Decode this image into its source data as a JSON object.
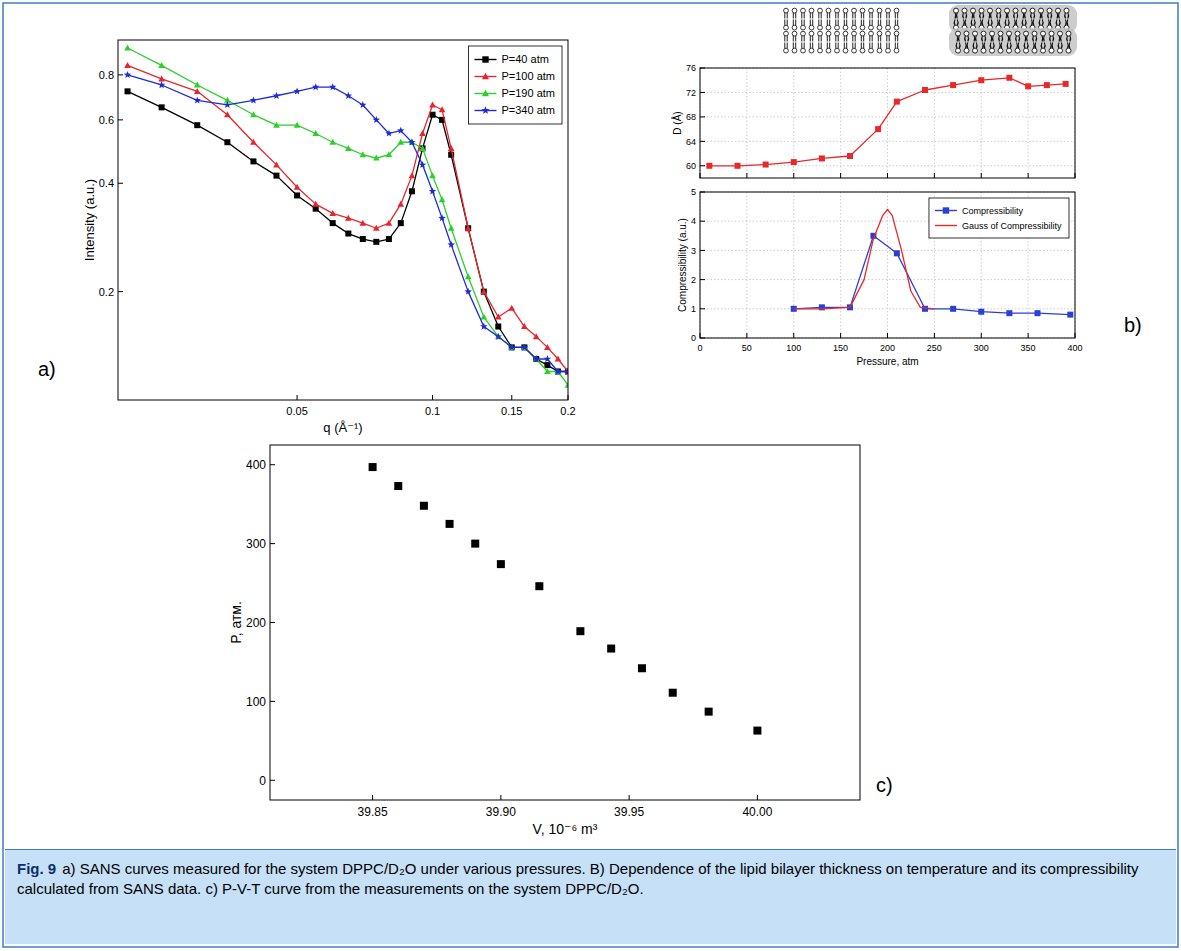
{
  "chart_data": [
    {
      "type": "line",
      "x_label": "q (Å⁻¹)",
      "y_label": "Intensity (a.u.)",
      "log": true,
      "xlim": [
        0.02,
        0.2
      ],
      "ylim": [
        0.1,
        1
      ],
      "xticks": [
        0.05,
        0.1,
        0.15,
        0.2
      ],
      "yticks": [
        0.2,
        0.4,
        0.6,
        0.8
      ],
      "legend": "upper right",
      "x": [
        0.021,
        0.025,
        0.03,
        0.035,
        0.04,
        0.045,
        0.05,
        0.055,
        0.06,
        0.065,
        0.07,
        0.075,
        0.08,
        0.085,
        0.09,
        0.095,
        0.1,
        0.105,
        0.11,
        0.12,
        0.13,
        0.14,
        0.15,
        0.16,
        0.17,
        0.18,
        0.19,
        0.2
      ],
      "series": [
        {
          "name": "P=40 atm",
          "color": "#000000",
          "marker": "square",
          "values": [
            0.72,
            0.65,
            0.58,
            0.52,
            0.46,
            0.42,
            0.37,
            0.34,
            0.31,
            0.29,
            0.28,
            0.275,
            0.28,
            0.31,
            0.38,
            0.5,
            0.62,
            0.6,
            0.48,
            0.3,
            0.2,
            0.16,
            0.14,
            0.14,
            0.13,
            0.125,
            0.12,
            0.12
          ]
        },
        {
          "name": "P=100 atm",
          "color": "#e8252b",
          "marker": "triangle",
          "values": [
            0.85,
            0.78,
            0.72,
            0.62,
            0.52,
            0.45,
            0.39,
            0.35,
            0.33,
            0.32,
            0.31,
            0.3,
            0.31,
            0.35,
            0.42,
            0.55,
            0.66,
            0.64,
            0.5,
            0.3,
            0.2,
            0.17,
            0.18,
            0.16,
            0.15,
            0.14,
            0.13,
            0.12
          ]
        },
        {
          "name": "P=190 atm",
          "color": "#2bd12b",
          "marker": "triangle",
          "values": [
            0.95,
            0.85,
            0.75,
            0.68,
            0.62,
            0.58,
            0.58,
            0.55,
            0.52,
            0.5,
            0.48,
            0.47,
            0.48,
            0.52,
            0.52,
            0.5,
            0.42,
            0.36,
            0.3,
            0.22,
            0.17,
            0.15,
            0.14,
            0.14,
            0.13,
            0.12,
            0.12,
            0.11
          ]
        },
        {
          "name": "P=340 atm",
          "color": "#1f2bd6",
          "marker": "star",
          "values": [
            0.8,
            0.75,
            0.68,
            0.66,
            0.68,
            0.7,
            0.72,
            0.74,
            0.74,
            0.7,
            0.66,
            0.6,
            0.55,
            0.56,
            0.52,
            0.45,
            0.38,
            0.32,
            0.27,
            0.2,
            0.16,
            0.15,
            0.14,
            0.14,
            0.13,
            0.13,
            0.12,
            0.12
          ]
        }
      ]
    },
    {
      "type": "line",
      "y_label": "D (Å)",
      "xlim": [
        0,
        400
      ],
      "ylim": [
        58,
        76
      ],
      "xticks": [
        0,
        50,
        100,
        150,
        200,
        250,
        300,
        350,
        400
      ],
      "yticks": [
        60,
        64,
        68,
        72,
        76
      ],
      "grid": true,
      "tick_labels": "y",
      "x": [
        10,
        40,
        70,
        100,
        130,
        160,
        190,
        210,
        240,
        270,
        300,
        330,
        350,
        370,
        390
      ],
      "series": [
        {
          "color": "#e8282b",
          "marker": "square",
          "values": [
            60,
            60,
            60.2,
            60.6,
            61.2,
            61.6,
            66,
            70.5,
            72.4,
            73.2,
            74,
            74.4,
            73,
            73.2,
            73.4
          ]
        }
      ]
    },
    {
      "type": "line",
      "x_label": "Pressure, atm",
      "y_label": "Compressibility (a.u.)",
      "xlim": [
        0,
        400
      ],
      "ylim": [
        0,
        5
      ],
      "xticks": [
        0,
        50,
        100,
        150,
        200,
        250,
        300,
        350,
        400
      ],
      "yticks": [
        0,
        1,
        2,
        3,
        4,
        5
      ],
      "grid": true,
      "legend": "upper right",
      "series": [
        {
          "name": "Compressibility",
          "color": "#2a3fd6",
          "marker": "square",
          "x": [
            100,
            130,
            160,
            185,
            210,
            240,
            270,
            300,
            330,
            360,
            395
          ],
          "values": [
            1,
            1.05,
            1.05,
            3.5,
            2.9,
            1,
            1,
            0.9,
            0.85,
            0.85,
            0.8
          ]
        },
        {
          "name": "Gauss of Compressibility",
          "color": "#e8282b",
          "marker": "none",
          "x": [
            100,
            130,
            160,
            175,
            185,
            195,
            200,
            205,
            215,
            225,
            235,
            250
          ],
          "values": [
            1,
            1,
            1.05,
            2,
            3.4,
            4.2,
            4.4,
            4.2,
            3,
            1.6,
            1.05,
            1
          ]
        }
      ]
    },
    {
      "type": "scatter",
      "x_label": "V, 10⁻⁶ m³",
      "y_label": "P, атм.",
      "xlim": [
        39.81,
        40.04
      ],
      "ylim": [
        -25,
        425
      ],
      "xticks": [
        39.85,
        {
          "value": 39.9,
          "label": "39.90"
        },
        39.95,
        {
          "value": 40,
          "label": "40.00"
        }
      ],
      "yticks": [
        0,
        100,
        200,
        300,
        400
      ],
      "color": "#000000",
      "marker": "square",
      "x": [
        39.85,
        39.86,
        39.87,
        39.88,
        39.89,
        39.9,
        39.915,
        39.931,
        39.943,
        39.955,
        39.967,
        39.981,
        40
      ],
      "values": [
        397,
        373,
        348,
        325,
        300,
        274,
        246,
        189,
        167,
        142,
        111,
        87,
        63
      ]
    }
  ],
  "panel_labels": [
    "a)",
    "b)",
    "c)"
  ],
  "caption": {
    "label": "Fig. 9",
    "text": "a) SANS curves measured for the system DPPC/D₂O under various pressures. B) Dependence of the lipid bilayer thickness on temperature and its compressibility calculated from SANS data. c) P-V-T curve from the measurements on the system DPPC/D₂O."
  }
}
